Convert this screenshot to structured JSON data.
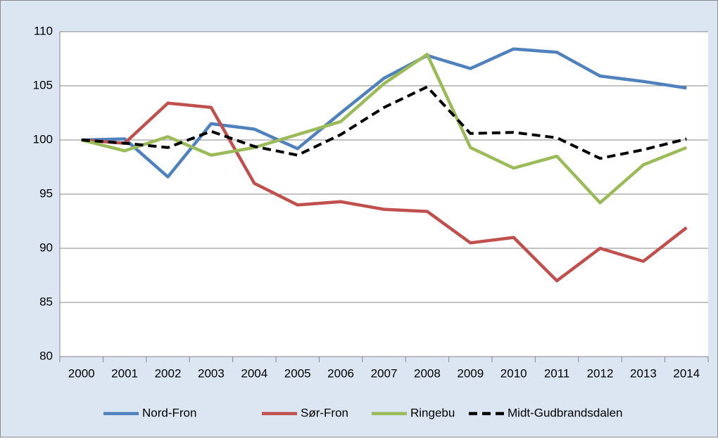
{
  "chart_data": {
    "type": "line",
    "categories": [
      "2000",
      "2001",
      "2002",
      "2003",
      "2004",
      "2005",
      "2006",
      "2007",
      "2008",
      "2009",
      "2010",
      "2011",
      "2012",
      "2013",
      "2014"
    ],
    "series": [
      {
        "name": "Nord-Fron",
        "color": "#4f81bd",
        "values": [
          100,
          100.1,
          96.6,
          101.5,
          101.0,
          99.2,
          102.5,
          105.7,
          107.8,
          106.6,
          108.4,
          108.1,
          105.9,
          105.4,
          104.8
        ]
      },
      {
        "name": "Sør-Fron",
        "color": "#c0504d",
        "values": [
          100,
          99.7,
          103.4,
          103.0,
          96.0,
          94.0,
          94.3,
          93.6,
          93.4,
          90.5,
          91.0,
          87.0,
          90.0,
          88.8,
          91.9
        ]
      },
      {
        "name": "Ringebu",
        "color": "#9bbb59",
        "values": [
          100,
          99.0,
          100.3,
          98.6,
          99.3,
          100.5,
          101.7,
          105.2,
          107.9,
          99.3,
          97.4,
          98.5,
          94.2,
          97.7,
          99.3
        ]
      },
      {
        "name": "Midt-Gudbrandsdalen",
        "color": "#000000",
        "dashed": true,
        "values": [
          100,
          99.7,
          99.3,
          100.8,
          99.4,
          98.6,
          100.5,
          103.0,
          104.9,
          100.6,
          100.7,
          100.2,
          98.3,
          99.1,
          100.1
        ]
      }
    ],
    "ylim": [
      80,
      110
    ],
    "yticks": [
      80,
      85,
      90,
      95,
      100,
      105,
      110
    ],
    "grid": true,
    "legend": "bottom"
  }
}
